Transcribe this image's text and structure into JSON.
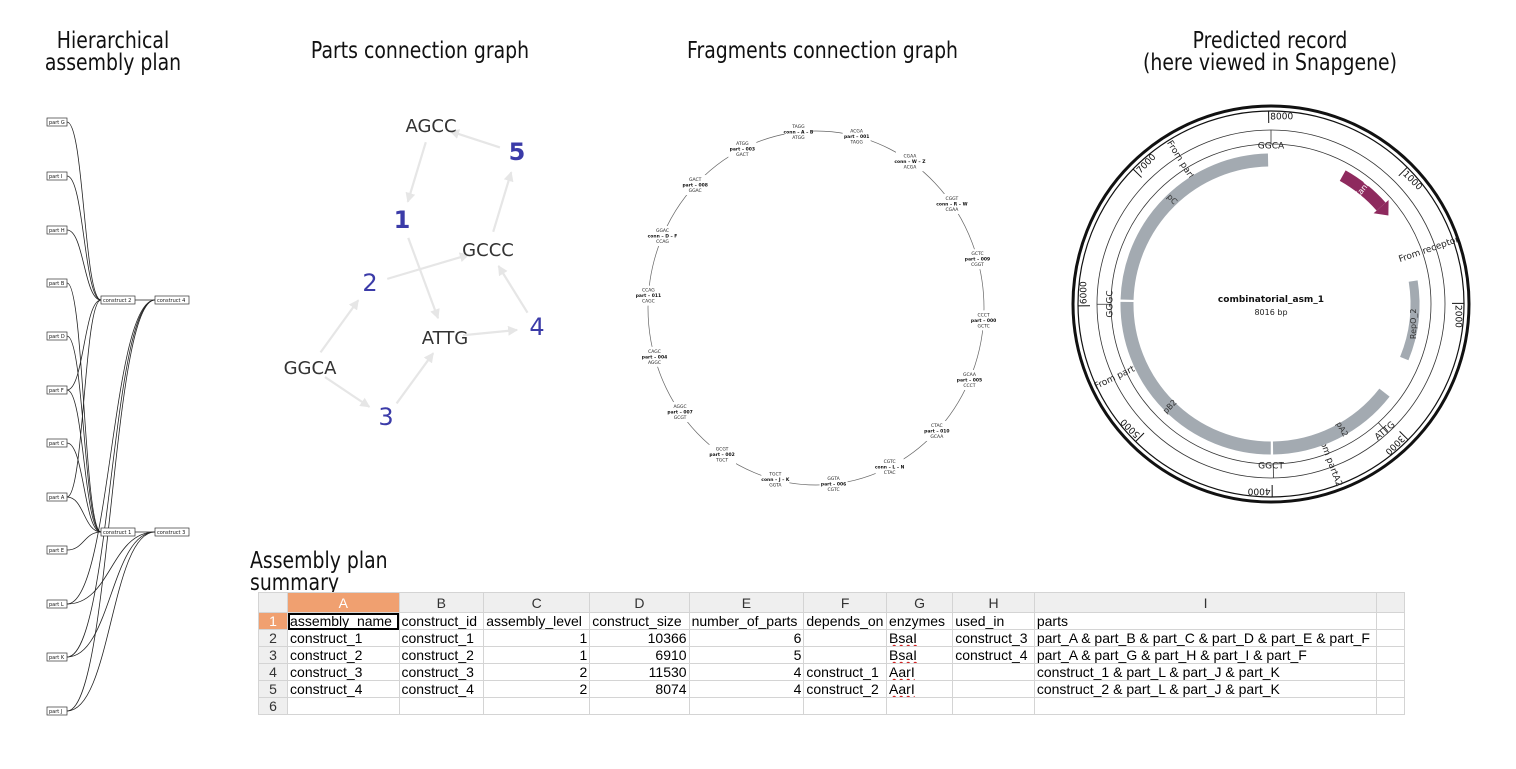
{
  "titles": {
    "hier_line1": "Hierarchical",
    "hier_line2": "assembly plan",
    "parts_graph": "Parts connection graph",
    "fragments_graph": "Fragments connection graph",
    "record_line1": "Predicted record",
    "record_line2": "(here viewed in Snapgene)",
    "summary": "Assembly plan summary"
  },
  "hierarchy": {
    "parts": [
      "part G",
      "part I",
      "part H",
      "part B",
      "part D",
      "part F",
      "part C",
      "part A",
      "part E",
      "part L",
      "part K",
      "part J"
    ],
    "constructs": [
      "construct 2",
      "construct 4",
      "construct 1",
      "construct 3"
    ]
  },
  "parts_graph": {
    "nodes": [
      "AGCC",
      "5",
      "1",
      "GCCC",
      "2",
      "ATTG",
      "4",
      "GGCA",
      "3"
    ],
    "colors": {
      "number": "#3b3ba8",
      "sequence": "#333333",
      "edge": "#e6e6e6"
    }
  },
  "fragments": [
    {
      "top": "TAGG",
      "mid": "conn – A – B",
      "bot": "ATGG"
    },
    {
      "top": "ACGA",
      "mid": "part – 001",
      "bot": "TAGG"
    },
    {
      "top": "CGAA",
      "mid": "conn – W – Z",
      "bot": "ACGA"
    },
    {
      "top": "CGGT",
      "mid": "conn – R – W",
      "bot": "CGAA"
    },
    {
      "top": "GCTC",
      "mid": "part – 009",
      "bot": "CGGT"
    },
    {
      "top": "CCCT",
      "mid": "part – 000",
      "bot": "GCTC"
    },
    {
      "top": "GCAA",
      "mid": "part – 005",
      "bot": "CCCT"
    },
    {
      "top": "CTAC",
      "mid": "part – 010",
      "bot": "GCAA"
    },
    {
      "top": "CGTC",
      "mid": "conn – L – N",
      "bot": "CTAC"
    },
    {
      "top": "GGTA",
      "mid": "part – 006",
      "bot": "CGTC"
    },
    {
      "top": "TGCT",
      "mid": "conn – J – K",
      "bot": "GGTA"
    },
    {
      "top": "GCGT",
      "mid": "part – 002",
      "bot": "TGCT"
    },
    {
      "top": "AGGC",
      "mid": "part – 007",
      "bot": "GCGT"
    },
    {
      "top": "CAGC",
      "mid": "part – 004",
      "bot": "AGGC"
    },
    {
      "top": "CCAG",
      "mid": "part – 011",
      "bot": "CAGC"
    },
    {
      "top": "GGAC",
      "mid": "conn – D – F",
      "bot": "CCAG"
    },
    {
      "top": "GACT",
      "mid": "part – 008",
      "bot": "GGAC"
    },
    {
      "top": "ATGG",
      "mid": "part – 003",
      "bot": "GACT"
    }
  ],
  "plasmid": {
    "name": "combinatorial_asm_1",
    "size": "8016 bp",
    "ticks": [
      "8000",
      "1000",
      "2000",
      "3000",
      "4000",
      "5000",
      "6000",
      "7000"
    ],
    "features": [
      "KanR",
      "RepO_2",
      "pA2",
      "pB2",
      "pC"
    ],
    "sources": [
      "From receptor",
      "From partA2",
      "From partB2",
      "From partC"
    ],
    "overhangs": [
      "GGCA",
      "ATTG",
      "GGCT",
      "GGGC"
    ],
    "colors": {
      "kanr": "#8e2a5e",
      "part": "#a3aab1"
    }
  },
  "sheet": {
    "col_letters": [
      "A",
      "B",
      "C",
      "D",
      "E",
      "F",
      "G",
      "H",
      "I"
    ],
    "row_numbers": [
      "1",
      "2",
      "3",
      "4",
      "5",
      "6"
    ],
    "header": [
      "assembly_name",
      "construct_id",
      "assembly_level",
      "construct_size",
      "number_of_parts",
      "depends_on",
      "enzymes",
      "used_in",
      "parts"
    ],
    "rows": [
      [
        "construct_1",
        "construct_1",
        "1",
        "10366",
        "6",
        "",
        "BsaI",
        "construct_3",
        "part_A & part_B & part_C & part_D & part_E & part_F"
      ],
      [
        "construct_2",
        "construct_2",
        "1",
        "6910",
        "5",
        "",
        "BsaI",
        "construct_4",
        "part_A & part_G & part_H & part_I & part_F"
      ],
      [
        "construct_3",
        "construct_3",
        "2",
        "11530",
        "4",
        "construct_1",
        "AarI",
        "",
        "construct_1 & part_L & part_J & part_K"
      ],
      [
        "construct_4",
        "construct_4",
        "2",
        "8074",
        "4",
        "construct_2",
        "AarI",
        "",
        "construct_2 & part_L & part_J & part_K"
      ],
      [
        "",
        "",
        "",
        "",
        "",
        "",
        "",
        "",
        ""
      ]
    ]
  }
}
